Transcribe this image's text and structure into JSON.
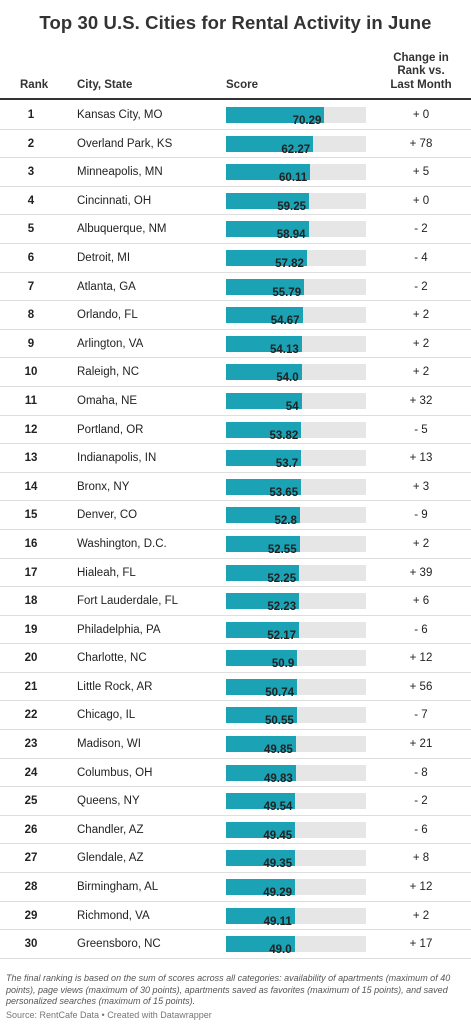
{
  "title": "Top 30 U.S. Cities for Rental Activity in June",
  "headers": {
    "rank": "Rank",
    "city": "City, State",
    "score": "Score",
    "change": "Change in Rank vs. Last Month"
  },
  "chart_data": {
    "type": "table",
    "title": "Top 30 U.S. Cities for Rental Activity in June",
    "score_max": 100,
    "bar_color": "#1ba2b5",
    "track_color": "#e6e6e6",
    "rows": [
      {
        "rank": "1",
        "city": "Kansas City, MO",
        "score": 70.29,
        "score_label": "70.29",
        "change": "+ 0"
      },
      {
        "rank": "2",
        "city": "Overland Park, KS",
        "score": 62.27,
        "score_label": "62.27",
        "change": "+ 78"
      },
      {
        "rank": "3",
        "city": "Minneapolis, MN",
        "score": 60.11,
        "score_label": "60.11",
        "change": "+ 5"
      },
      {
        "rank": "4",
        "city": "Cincinnati, OH",
        "score": 59.25,
        "score_label": "59.25",
        "change": "+ 0"
      },
      {
        "rank": "5",
        "city": "Albuquerque, NM",
        "score": 58.94,
        "score_label": "58.94",
        "change": "- 2"
      },
      {
        "rank": "6",
        "city": "Detroit, MI",
        "score": 57.82,
        "score_label": "57.82",
        "change": "- 4"
      },
      {
        "rank": "7",
        "city": "Atlanta, GA",
        "score": 55.79,
        "score_label": "55.79",
        "change": "- 2"
      },
      {
        "rank": "8",
        "city": "Orlando, FL",
        "score": 54.67,
        "score_label": "54.67",
        "change": "+ 2"
      },
      {
        "rank": "9",
        "city": "Arlington, VA",
        "score": 54.13,
        "score_label": "54.13",
        "change": "+ 2"
      },
      {
        "rank": "10",
        "city": "Raleigh, NC",
        "score": 54.0,
        "score_label": "54.0",
        "change": "+ 2"
      },
      {
        "rank": "11",
        "city": "Omaha, NE",
        "score": 54,
        "score_label": "54",
        "change": "+ 32"
      },
      {
        "rank": "12",
        "city": "Portland, OR",
        "score": 53.82,
        "score_label": "53.82",
        "change": "- 5"
      },
      {
        "rank": "13",
        "city": "Indianapolis, IN",
        "score": 53.7,
        "score_label": "53.7",
        "change": "+ 13"
      },
      {
        "rank": "14",
        "city": "Bronx, NY",
        "score": 53.65,
        "score_label": "53.65",
        "change": "+ 3"
      },
      {
        "rank": "15",
        "city": "Denver, CO",
        "score": 52.8,
        "score_label": "52.8",
        "change": "- 9"
      },
      {
        "rank": "16",
        "city": "Washington, D.C.",
        "score": 52.55,
        "score_label": "52.55",
        "change": "+ 2"
      },
      {
        "rank": "17",
        "city": "Hialeah, FL",
        "score": 52.25,
        "score_label": "52.25",
        "change": "+ 39"
      },
      {
        "rank": "18",
        "city": "Fort Lauderdale, FL",
        "score": 52.23,
        "score_label": "52.23",
        "change": "+ 6"
      },
      {
        "rank": "19",
        "city": "Philadelphia, PA",
        "score": 52.17,
        "score_label": "52.17",
        "change": "- 6"
      },
      {
        "rank": "20",
        "city": "Charlotte, NC",
        "score": 50.9,
        "score_label": "50.9",
        "change": "+ 12"
      },
      {
        "rank": "21",
        "city": "Little Rock, AR",
        "score": 50.74,
        "score_label": "50.74",
        "change": "+ 56"
      },
      {
        "rank": "22",
        "city": "Chicago, IL",
        "score": 50.55,
        "score_label": "50.55",
        "change": "- 7"
      },
      {
        "rank": "23",
        "city": "Madison, WI",
        "score": 49.85,
        "score_label": "49.85",
        "change": "+ 21"
      },
      {
        "rank": "24",
        "city": "Columbus, OH",
        "score": 49.83,
        "score_label": "49.83",
        "change": "- 8"
      },
      {
        "rank": "25",
        "city": "Queens, NY",
        "score": 49.54,
        "score_label": "49.54",
        "change": "- 2"
      },
      {
        "rank": "26",
        "city": "Chandler, AZ",
        "score": 49.45,
        "score_label": "49.45",
        "change": "- 6"
      },
      {
        "rank": "27",
        "city": "Glendale, AZ",
        "score": 49.35,
        "score_label": "49.35",
        "change": "+ 8"
      },
      {
        "rank": "28",
        "city": "Birmingham, AL",
        "score": 49.29,
        "score_label": "49.29",
        "change": "+ 12"
      },
      {
        "rank": "29",
        "city": "Richmond, VA",
        "score": 49.11,
        "score_label": "49.11",
        "change": "+ 2"
      },
      {
        "rank": "30",
        "city": "Greensboro, NC",
        "score": 49.0,
        "score_label": "49.0",
        "change": "+ 17"
      }
    ]
  },
  "notes": "The final ranking is based on the sum of scores across all categories: availability of apartments (maximum of 40 points), page views (maximum of 30 points), apartments saved as favorites (maximum of 15 points), and saved personalized searches (maximum of 15 points).",
  "source": "Source: RentCafe Data • Created with Datawrapper"
}
